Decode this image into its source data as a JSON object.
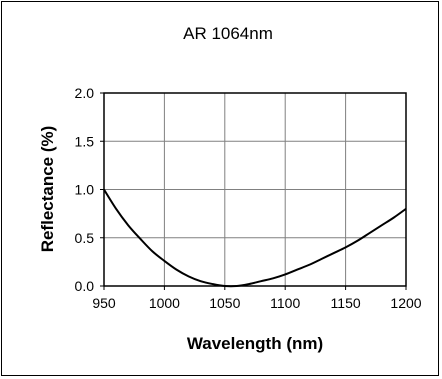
{
  "chart_data": {
    "type": "line",
    "title": "AR 1064nm",
    "xlabel": "Wavelength (nm)",
    "ylabel": "Reflectance (%)",
    "xlim": [
      950,
      1200
    ],
    "ylim": [
      0,
      2.0
    ],
    "x_ticks": [
      "950",
      "1000",
      "1050",
      "1100",
      "1150",
      "1200"
    ],
    "y_ticks": [
      "2.0",
      "1.5",
      "1.0",
      "0.5",
      "0.0"
    ],
    "grid": true,
    "legend": "none",
    "series": [
      {
        "x": [
          950,
          960,
          970,
          980,
          990,
          1000,
          1010,
          1020,
          1030,
          1040,
          1050,
          1060,
          1070,
          1080,
          1090,
          1100,
          1110,
          1120,
          1130,
          1140,
          1150,
          1160,
          1170,
          1180,
          1190,
          1200
        ],
        "y": [
          1.0,
          0.8,
          0.63,
          0.49,
          0.36,
          0.26,
          0.17,
          0.1,
          0.05,
          0.02,
          0.0,
          0.0,
          0.02,
          0.05,
          0.08,
          0.12,
          0.17,
          0.22,
          0.28,
          0.34,
          0.4,
          0.47,
          0.55,
          0.63,
          0.71,
          0.8
        ]
      }
    ],
    "colors": {
      "line": "#000000",
      "grid": "#808080",
      "axis": "#000000",
      "text": "#000000"
    }
  }
}
